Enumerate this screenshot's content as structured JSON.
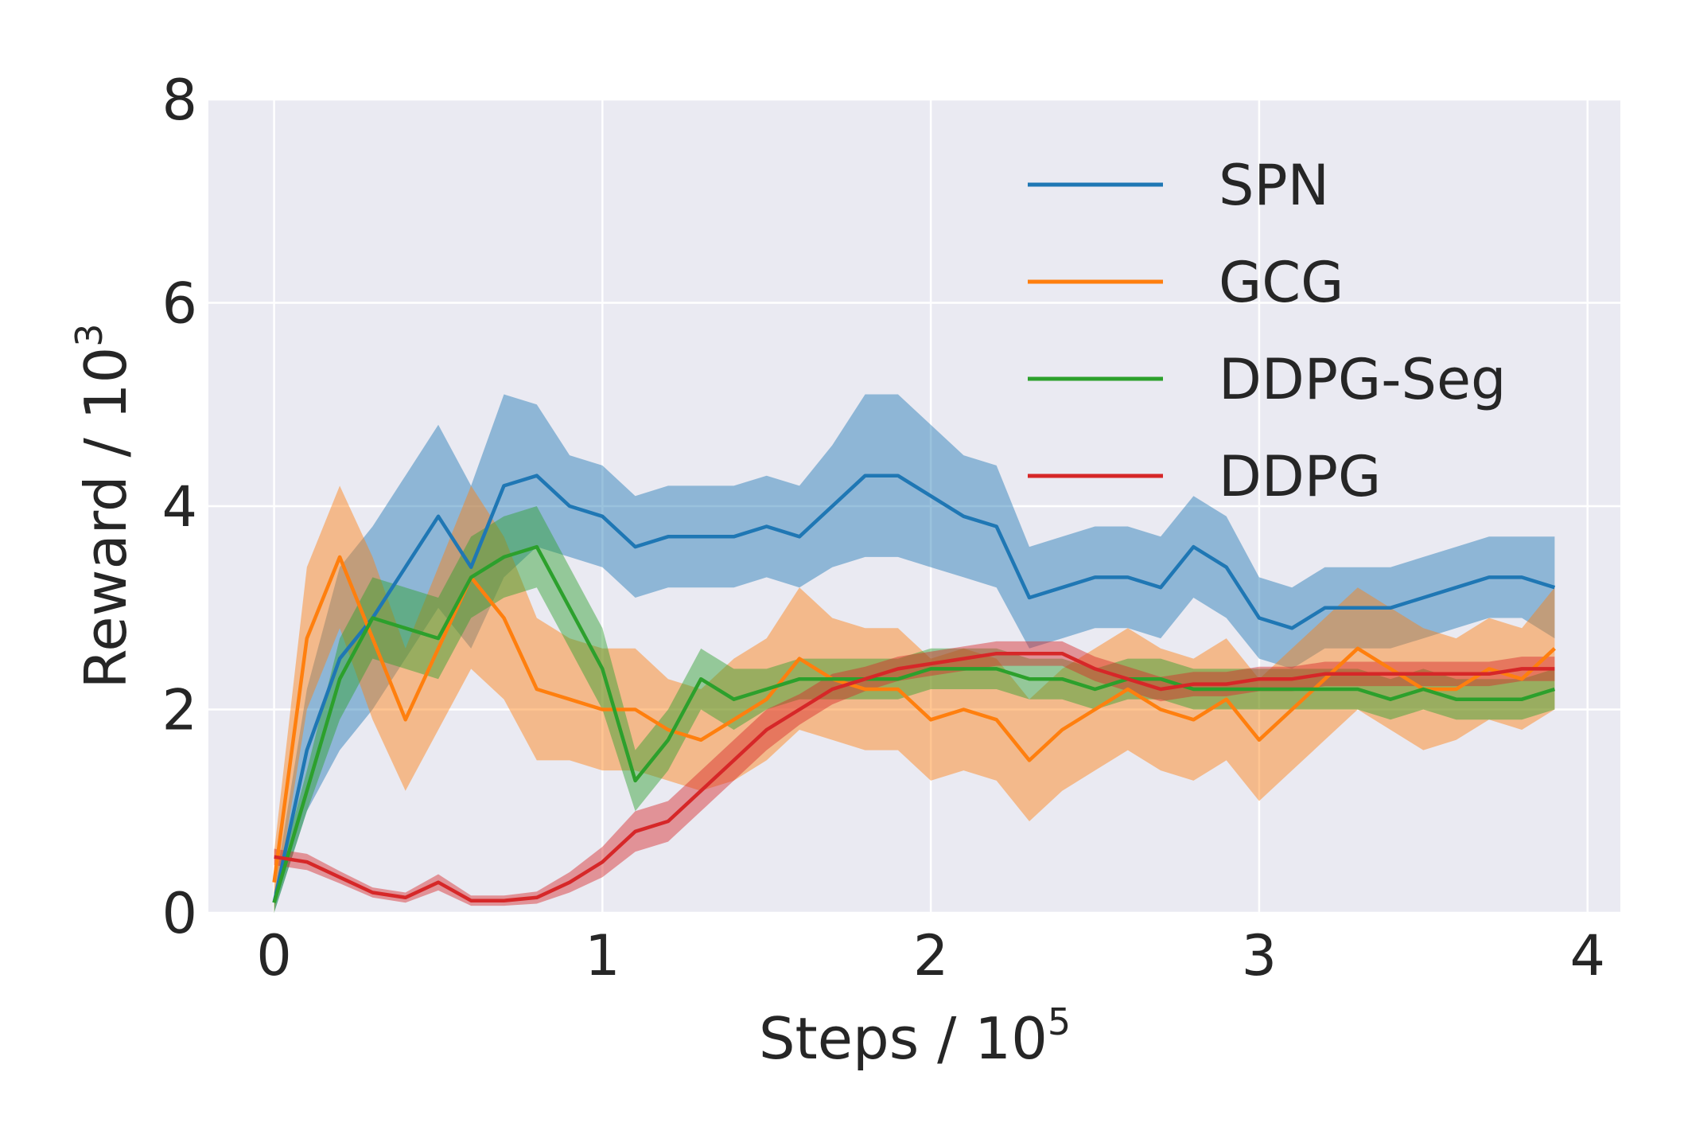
{
  "chart_data": {
    "type": "line",
    "xlabel": "Steps / 10",
    "xlabel_exponent": "5",
    "ylabel": "Reward / 10",
    "ylabel_exponent": "3",
    "xlim": [
      -0.2,
      4.1
    ],
    "ylim": [
      0,
      8
    ],
    "xticks": [
      0,
      1,
      2,
      3,
      4
    ],
    "yticks": [
      0,
      2,
      4,
      6,
      8
    ],
    "xtick_labels": [
      "0",
      "1",
      "2",
      "3",
      "4"
    ],
    "ytick_labels": [
      "0",
      "2",
      "4",
      "6",
      "8"
    ],
    "grid": true,
    "legend_position": "upper-right",
    "x": [
      0.0,
      0.1,
      0.2,
      0.3,
      0.4,
      0.5,
      0.6,
      0.7,
      0.8,
      0.9,
      1.0,
      1.1,
      1.2,
      1.3,
      1.4,
      1.5,
      1.6,
      1.7,
      1.8,
      1.9,
      2.0,
      2.1,
      2.2,
      2.3,
      2.4,
      2.5,
      2.6,
      2.7,
      2.8,
      2.9,
      3.0,
      3.1,
      3.2,
      3.3,
      3.4,
      3.5,
      3.6,
      3.7,
      3.8,
      3.9
    ],
    "series": [
      {
        "name": "SPN",
        "color": "#1f77b4",
        "values": [
          0.1,
          1.6,
          2.5,
          2.9,
          3.4,
          3.9,
          3.4,
          4.2,
          4.3,
          4.0,
          3.9,
          3.6,
          3.7,
          3.7,
          3.7,
          3.8,
          3.7,
          4.0,
          4.3,
          4.3,
          4.1,
          3.9,
          3.8,
          3.1,
          3.2,
          3.3,
          3.3,
          3.2,
          3.6,
          3.4,
          2.9,
          2.8,
          3.0,
          3.0,
          3.0,
          3.1,
          3.2,
          3.3,
          3.3,
          3.2
        ],
        "band": [
          0.1,
          0.6,
          0.9,
          0.9,
          0.9,
          0.9,
          0.8,
          0.9,
          0.7,
          0.5,
          0.5,
          0.5,
          0.5,
          0.5,
          0.5,
          0.5,
          0.5,
          0.6,
          0.8,
          0.8,
          0.7,
          0.6,
          0.6,
          0.5,
          0.5,
          0.5,
          0.5,
          0.5,
          0.5,
          0.5,
          0.4,
          0.4,
          0.4,
          0.4,
          0.4,
          0.4,
          0.4,
          0.4,
          0.4,
          0.5
        ]
      },
      {
        "name": "GCG",
        "color": "#ff7f0e",
        "values": [
          0.3,
          2.7,
          3.5,
          2.7,
          1.9,
          2.6,
          3.3,
          2.9,
          2.2,
          2.1,
          2.0,
          2.0,
          1.8,
          1.7,
          1.9,
          2.1,
          2.5,
          2.3,
          2.2,
          2.2,
          1.9,
          2.0,
          1.9,
          1.5,
          1.8,
          2.0,
          2.2,
          2.0,
          1.9,
          2.1,
          1.7,
          2.0,
          2.3,
          2.6,
          2.4,
          2.2,
          2.2,
          2.4,
          2.3,
          2.6
        ],
        "band": [
          0.3,
          0.7,
          0.7,
          0.8,
          0.7,
          0.8,
          0.9,
          0.8,
          0.7,
          0.6,
          0.6,
          0.6,
          0.5,
          0.5,
          0.6,
          0.6,
          0.7,
          0.6,
          0.6,
          0.6,
          0.6,
          0.6,
          0.6,
          0.6,
          0.6,
          0.6,
          0.6,
          0.6,
          0.6,
          0.6,
          0.6,
          0.6,
          0.6,
          0.6,
          0.6,
          0.6,
          0.5,
          0.5,
          0.5,
          0.6
        ]
      },
      {
        "name": "DDPG-Seg",
        "color": "#2ca02c",
        "values": [
          0.1,
          1.2,
          2.3,
          2.9,
          2.8,
          2.7,
          3.3,
          3.5,
          3.6,
          3.0,
          2.4,
          1.3,
          1.7,
          2.3,
          2.1,
          2.2,
          2.3,
          2.3,
          2.3,
          2.3,
          2.4,
          2.4,
          2.4,
          2.3,
          2.3,
          2.2,
          2.3,
          2.3,
          2.2,
          2.2,
          2.2,
          2.2,
          2.2,
          2.2,
          2.1,
          2.2,
          2.1,
          2.1,
          2.1,
          2.2
        ],
        "band": [
          0.1,
          0.2,
          0.4,
          0.4,
          0.4,
          0.4,
          0.4,
          0.4,
          0.4,
          0.4,
          0.4,
          0.3,
          0.3,
          0.3,
          0.3,
          0.2,
          0.2,
          0.2,
          0.2,
          0.2,
          0.2,
          0.2,
          0.2,
          0.2,
          0.2,
          0.2,
          0.2,
          0.2,
          0.2,
          0.2,
          0.2,
          0.2,
          0.2,
          0.2,
          0.2,
          0.2,
          0.2,
          0.2,
          0.2,
          0.2
        ]
      },
      {
        "name": "DDPG",
        "color": "#d62728",
        "values": [
          0.55,
          0.5,
          0.35,
          0.2,
          0.15,
          0.3,
          0.12,
          0.12,
          0.15,
          0.3,
          0.5,
          0.8,
          0.9,
          1.2,
          1.5,
          1.8,
          2.0,
          2.2,
          2.3,
          2.4,
          2.45,
          2.5,
          2.55,
          2.55,
          2.55,
          2.4,
          2.3,
          2.2,
          2.25,
          2.25,
          2.3,
          2.3,
          2.35,
          2.35,
          2.35,
          2.35,
          2.35,
          2.35,
          2.4,
          2.4
        ],
        "band": [
          0.08,
          0.08,
          0.06,
          0.05,
          0.05,
          0.08,
          0.05,
          0.05,
          0.06,
          0.1,
          0.15,
          0.2,
          0.2,
          0.2,
          0.2,
          0.2,
          0.15,
          0.15,
          0.12,
          0.12,
          0.12,
          0.12,
          0.12,
          0.12,
          0.12,
          0.12,
          0.12,
          0.12,
          0.12,
          0.12,
          0.12,
          0.12,
          0.12,
          0.12,
          0.12,
          0.12,
          0.12,
          0.12,
          0.12,
          0.12
        ]
      }
    ]
  }
}
